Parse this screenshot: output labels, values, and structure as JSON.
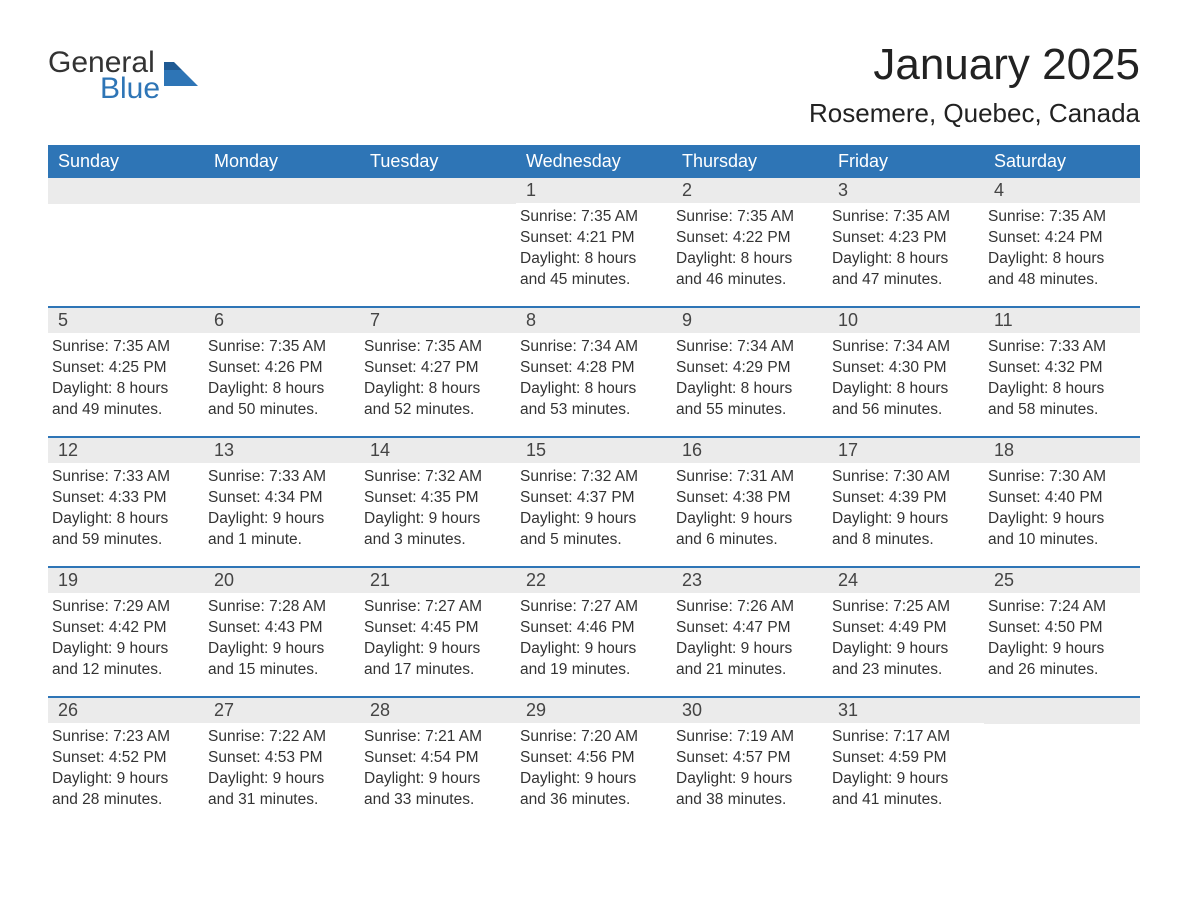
{
  "logo": {
    "word1": "General",
    "word2": "Blue",
    "flag_color": "#2e75b6"
  },
  "title": "January 2025",
  "location": "Rosemere, Quebec, Canada",
  "colors": {
    "header_bg": "#2e75b6",
    "header_text": "#ffffff",
    "daynum_bg": "#ebebeb",
    "week_divider": "#2e75b6",
    "body_text": "#333333",
    "page_bg": "#ffffff"
  },
  "weekdays": [
    "Sunday",
    "Monday",
    "Tuesday",
    "Wednesday",
    "Thursday",
    "Friday",
    "Saturday"
  ],
  "weeks": [
    [
      null,
      null,
      null,
      {
        "n": "1",
        "sunrise": "Sunrise: 7:35 AM",
        "sunset": "Sunset: 4:21 PM",
        "d1": "Daylight: 8 hours",
        "d2": "and 45 minutes."
      },
      {
        "n": "2",
        "sunrise": "Sunrise: 7:35 AM",
        "sunset": "Sunset: 4:22 PM",
        "d1": "Daylight: 8 hours",
        "d2": "and 46 minutes."
      },
      {
        "n": "3",
        "sunrise": "Sunrise: 7:35 AM",
        "sunset": "Sunset: 4:23 PM",
        "d1": "Daylight: 8 hours",
        "d2": "and 47 minutes."
      },
      {
        "n": "4",
        "sunrise": "Sunrise: 7:35 AM",
        "sunset": "Sunset: 4:24 PM",
        "d1": "Daylight: 8 hours",
        "d2": "and 48 minutes."
      }
    ],
    [
      {
        "n": "5",
        "sunrise": "Sunrise: 7:35 AM",
        "sunset": "Sunset: 4:25 PM",
        "d1": "Daylight: 8 hours",
        "d2": "and 49 minutes."
      },
      {
        "n": "6",
        "sunrise": "Sunrise: 7:35 AM",
        "sunset": "Sunset: 4:26 PM",
        "d1": "Daylight: 8 hours",
        "d2": "and 50 minutes."
      },
      {
        "n": "7",
        "sunrise": "Sunrise: 7:35 AM",
        "sunset": "Sunset: 4:27 PM",
        "d1": "Daylight: 8 hours",
        "d2": "and 52 minutes."
      },
      {
        "n": "8",
        "sunrise": "Sunrise: 7:34 AM",
        "sunset": "Sunset: 4:28 PM",
        "d1": "Daylight: 8 hours",
        "d2": "and 53 minutes."
      },
      {
        "n": "9",
        "sunrise": "Sunrise: 7:34 AM",
        "sunset": "Sunset: 4:29 PM",
        "d1": "Daylight: 8 hours",
        "d2": "and 55 minutes."
      },
      {
        "n": "10",
        "sunrise": "Sunrise: 7:34 AM",
        "sunset": "Sunset: 4:30 PM",
        "d1": "Daylight: 8 hours",
        "d2": "and 56 minutes."
      },
      {
        "n": "11",
        "sunrise": "Sunrise: 7:33 AM",
        "sunset": "Sunset: 4:32 PM",
        "d1": "Daylight: 8 hours",
        "d2": "and 58 minutes."
      }
    ],
    [
      {
        "n": "12",
        "sunrise": "Sunrise: 7:33 AM",
        "sunset": "Sunset: 4:33 PM",
        "d1": "Daylight: 8 hours",
        "d2": "and 59 minutes."
      },
      {
        "n": "13",
        "sunrise": "Sunrise: 7:33 AM",
        "sunset": "Sunset: 4:34 PM",
        "d1": "Daylight: 9 hours",
        "d2": "and 1 minute."
      },
      {
        "n": "14",
        "sunrise": "Sunrise: 7:32 AM",
        "sunset": "Sunset: 4:35 PM",
        "d1": "Daylight: 9 hours",
        "d2": "and 3 minutes."
      },
      {
        "n": "15",
        "sunrise": "Sunrise: 7:32 AM",
        "sunset": "Sunset: 4:37 PM",
        "d1": "Daylight: 9 hours",
        "d2": "and 5 minutes."
      },
      {
        "n": "16",
        "sunrise": "Sunrise: 7:31 AM",
        "sunset": "Sunset: 4:38 PM",
        "d1": "Daylight: 9 hours",
        "d2": "and 6 minutes."
      },
      {
        "n": "17",
        "sunrise": "Sunrise: 7:30 AM",
        "sunset": "Sunset: 4:39 PM",
        "d1": "Daylight: 9 hours",
        "d2": "and 8 minutes."
      },
      {
        "n": "18",
        "sunrise": "Sunrise: 7:30 AM",
        "sunset": "Sunset: 4:40 PM",
        "d1": "Daylight: 9 hours",
        "d2": "and 10 minutes."
      }
    ],
    [
      {
        "n": "19",
        "sunrise": "Sunrise: 7:29 AM",
        "sunset": "Sunset: 4:42 PM",
        "d1": "Daylight: 9 hours",
        "d2": "and 12 minutes."
      },
      {
        "n": "20",
        "sunrise": "Sunrise: 7:28 AM",
        "sunset": "Sunset: 4:43 PM",
        "d1": "Daylight: 9 hours",
        "d2": "and 15 minutes."
      },
      {
        "n": "21",
        "sunrise": "Sunrise: 7:27 AM",
        "sunset": "Sunset: 4:45 PM",
        "d1": "Daylight: 9 hours",
        "d2": "and 17 minutes."
      },
      {
        "n": "22",
        "sunrise": "Sunrise: 7:27 AM",
        "sunset": "Sunset: 4:46 PM",
        "d1": "Daylight: 9 hours",
        "d2": "and 19 minutes."
      },
      {
        "n": "23",
        "sunrise": "Sunrise: 7:26 AM",
        "sunset": "Sunset: 4:47 PM",
        "d1": "Daylight: 9 hours",
        "d2": "and 21 minutes."
      },
      {
        "n": "24",
        "sunrise": "Sunrise: 7:25 AM",
        "sunset": "Sunset: 4:49 PM",
        "d1": "Daylight: 9 hours",
        "d2": "and 23 minutes."
      },
      {
        "n": "25",
        "sunrise": "Sunrise: 7:24 AM",
        "sunset": "Sunset: 4:50 PM",
        "d1": "Daylight: 9 hours",
        "d2": "and 26 minutes."
      }
    ],
    [
      {
        "n": "26",
        "sunrise": "Sunrise: 7:23 AM",
        "sunset": "Sunset: 4:52 PM",
        "d1": "Daylight: 9 hours",
        "d2": "and 28 minutes."
      },
      {
        "n": "27",
        "sunrise": "Sunrise: 7:22 AM",
        "sunset": "Sunset: 4:53 PM",
        "d1": "Daylight: 9 hours",
        "d2": "and 31 minutes."
      },
      {
        "n": "28",
        "sunrise": "Sunrise: 7:21 AM",
        "sunset": "Sunset: 4:54 PM",
        "d1": "Daylight: 9 hours",
        "d2": "and 33 minutes."
      },
      {
        "n": "29",
        "sunrise": "Sunrise: 7:20 AM",
        "sunset": "Sunset: 4:56 PM",
        "d1": "Daylight: 9 hours",
        "d2": "and 36 minutes."
      },
      {
        "n": "30",
        "sunrise": "Sunrise: 7:19 AM",
        "sunset": "Sunset: 4:57 PM",
        "d1": "Daylight: 9 hours",
        "d2": "and 38 minutes."
      },
      {
        "n": "31",
        "sunrise": "Sunrise: 7:17 AM",
        "sunset": "Sunset: 4:59 PM",
        "d1": "Daylight: 9 hours",
        "d2": "and 41 minutes."
      },
      null
    ]
  ]
}
